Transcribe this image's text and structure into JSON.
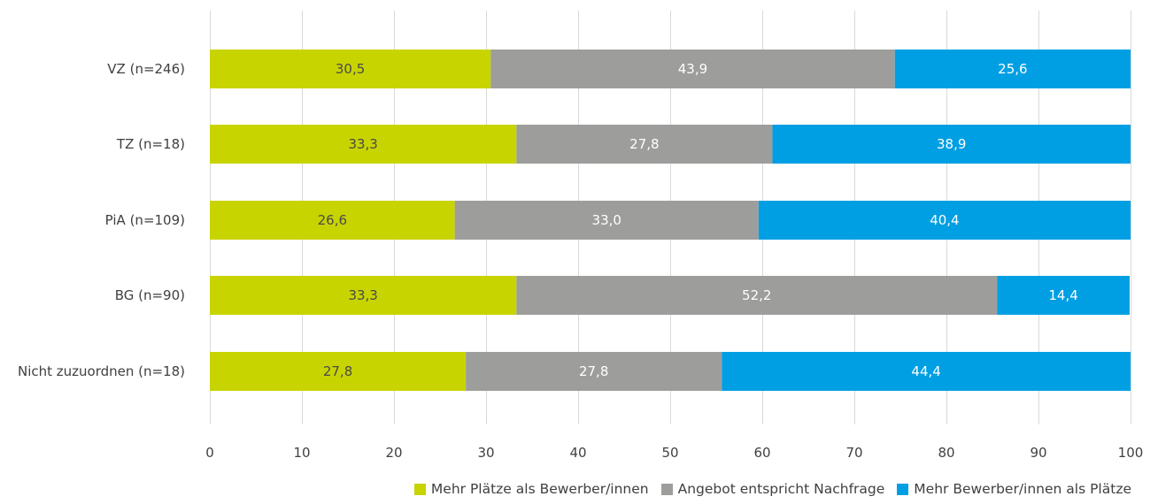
{
  "chart_data": {
    "type": "bar",
    "orientation": "horizontal",
    "stacked": true,
    "categories": [
      "VZ (n=246)",
      "TZ (n=18)",
      "PiA (n=109)",
      "BG (n=90)",
      "Nicht zuzuordnen (n=18)"
    ],
    "series": [
      {
        "name": "Mehr Plätze als Bewerber/innen",
        "color": "#c8d400",
        "label_color": "#4a4a4a",
        "values": [
          30.5,
          33.3,
          26.6,
          33.3,
          27.8
        ],
        "labels": [
          "30,5",
          "33,3",
          "26,6",
          "33,3",
          "27,8"
        ]
      },
      {
        "name": "Angebot entspricht Nachfrage",
        "color": "#9d9d9c",
        "label_color": "#ffffff",
        "values": [
          43.9,
          27.8,
          33.0,
          52.2,
          27.8
        ],
        "labels": [
          "43,9",
          "27,8",
          "33,0",
          "52,2",
          "27,8"
        ]
      },
      {
        "name": "Mehr Bewerber/innen als Plätze",
        "color": "#009fe3",
        "label_color": "#ffffff",
        "values": [
          25.6,
          38.9,
          40.4,
          14.4,
          44.4
        ],
        "labels": [
          "25,6",
          "38,9",
          "40,4",
          "14,4",
          "44,4"
        ]
      }
    ],
    "xlim": [
      0,
      100
    ],
    "x_ticks": [
      0,
      10,
      20,
      30,
      40,
      50,
      60,
      70,
      80,
      90,
      100
    ],
    "x_tick_labels": [
      "0",
      "10",
      "20",
      "30",
      "40",
      "50",
      "60",
      "70",
      "80",
      "90",
      "100"
    ],
    "grid": "vertical",
    "grid_color": "#d9d9d9",
    "legend_position": "bottom-right",
    "title": "",
    "xlabel": "",
    "ylabel": ""
  }
}
